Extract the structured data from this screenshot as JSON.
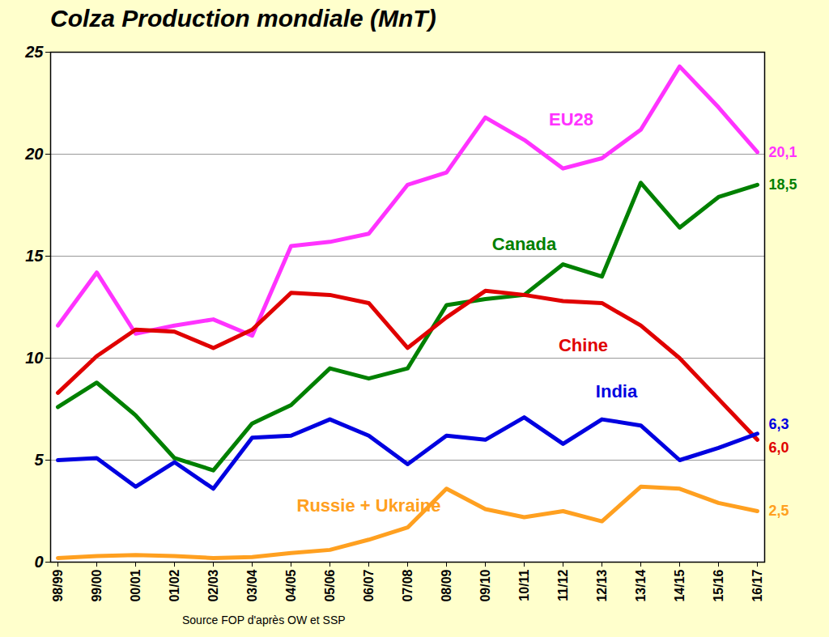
{
  "chart_data": {
    "type": "line",
    "title": "Colza Production mondiale (MnT)",
    "caption": "Source FOP d'après OW et SSP",
    "categories": [
      "98/99",
      "99/00",
      "00/01",
      "01/02",
      "02/03",
      "03/04",
      "04/05",
      "05/06",
      "06/07",
      "07/08",
      "08/09",
      "09/10",
      "10/11",
      "11/12",
      "12/13",
      "13/14",
      "14/15",
      "15/16",
      "16/17"
    ],
    "series": [
      {
        "name": "EU28",
        "color": "#ff33ff",
        "values": [
          11.6,
          14.2,
          11.2,
          11.6,
          11.9,
          11.1,
          15.5,
          15.7,
          16.1,
          18.5,
          19.1,
          21.8,
          20.7,
          19.3,
          19.8,
          21.2,
          24.3,
          22.3,
          20.1
        ],
        "last_label": "20,1"
      },
      {
        "name": "Canada",
        "color": "#008000",
        "values": [
          7.6,
          8.8,
          7.2,
          5.1,
          4.5,
          6.8,
          7.7,
          9.5,
          9.0,
          9.5,
          12.6,
          12.9,
          13.1,
          14.6,
          14.0,
          18.6,
          16.4,
          17.9,
          18.5
        ],
        "last_label": "18,5"
      },
      {
        "name": "Chine",
        "color": "#e00000",
        "values": [
          8.3,
          10.1,
          11.4,
          11.3,
          10.5,
          11.4,
          13.2,
          13.1,
          12.7,
          10.5,
          12.0,
          13.3,
          13.1,
          12.8,
          12.7,
          11.6,
          10.0,
          8.0,
          6.0
        ],
        "last_label": "6,0"
      },
      {
        "name": "India",
        "color": "#0000e0",
        "values": [
          5.0,
          5.1,
          3.7,
          4.9,
          3.6,
          6.1,
          6.2,
          7.0,
          6.2,
          4.8,
          6.2,
          6.0,
          7.1,
          5.8,
          7.0,
          6.7,
          5.0,
          5.6,
          6.3
        ],
        "last_label": "6,3"
      },
      {
        "name": "Russie + Ukraine",
        "color": "#ffa020",
        "values": [
          0.2,
          0.3,
          0.35,
          0.3,
          0.2,
          0.25,
          0.45,
          0.6,
          1.1,
          1.7,
          3.6,
          2.6,
          2.2,
          2.5,
          2.0,
          3.7,
          3.6,
          2.9,
          2.5
        ],
        "last_label": "2,5"
      }
    ],
    "ylim": [
      0,
      25
    ],
    "yticks": [
      0,
      5,
      10,
      15,
      20,
      25
    ],
    "grid": true
  }
}
